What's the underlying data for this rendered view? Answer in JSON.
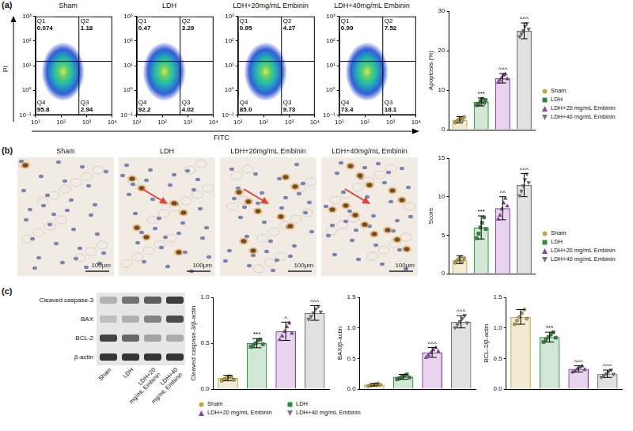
{
  "panel_labels": [
    "(a)",
    "(b)",
    "(c)"
  ],
  "flow": {
    "x_label": "FITC",
    "y_label": "PI",
    "log": true,
    "xlim": [
      10,
      10000
    ],
    "xticks": [
      {
        "value": 10,
        "label": "10¹"
      },
      {
        "value": 100,
        "label": "10²"
      },
      {
        "value": 1000,
        "label": "10³"
      },
      {
        "value": 10000,
        "label": "10⁴"
      }
    ],
    "ylim": [
      0.1,
      1000
    ],
    "yticks": [
      {
        "value": 0.1,
        "label": "10⁻¹"
      },
      {
        "value": 1,
        "label": "10⁰"
      },
      {
        "value": 10,
        "label": "10¹"
      },
      {
        "value": 100,
        "label": "10²"
      },
      {
        "value": 1000,
        "label": "10³"
      }
    ],
    "gates": {
      "x": 500,
      "y": 15
    },
    "plots": [
      {
        "title": "Sham",
        "quadrants": [
          {
            "name": "Q1",
            "value": 0.074
          },
          {
            "name": "Q2",
            "value": 1.18
          },
          {
            "name": "Q3",
            "value": 2.94
          },
          {
            "name": "Q4",
            "value": 95.8
          }
        ]
      },
      {
        "title": "LDH",
        "quadrants": [
          {
            "name": "Q1",
            "value": 0.47
          },
          {
            "name": "Q2",
            "value": 3.29
          },
          {
            "name": "Q3",
            "value": 4.02
          },
          {
            "name": "Q4",
            "value": 92.2
          }
        ]
      },
      {
        "title": "LDH+20mg/mL Embinin",
        "quadrants": [
          {
            "name": "Q1",
            "value": 0.95
          },
          {
            "name": "Q2",
            "value": 4.27
          },
          {
            "name": "Q3",
            "value": 9.73
          },
          {
            "name": "Q4",
            "value": 85.0,
            "label": "85.0"
          }
        ]
      },
      {
        "title": "LDH+40mg/mL Embinin",
        "quadrants": [
          {
            "name": "Q1",
            "value": 0.99
          },
          {
            "name": "Q2",
            "value": 7.52
          },
          {
            "name": "Q3",
            "value": 18.1
          },
          {
            "name": "Q4",
            "value": 73.4
          }
        ]
      }
    ]
  },
  "ihc": {
    "titles": [
      "Sham",
      "LDH",
      "LDH+20mg/mL Embinin",
      "LDH+40mg/mL Embinin"
    ],
    "scale_bar": "100μm"
  },
  "blot": {
    "rows": [
      "Cleaved caspase-3",
      "BAX",
      "BCL-2",
      "β-actin"
    ],
    "lanes": [
      "Sham",
      "LDH",
      "LDH+20 mg/mL Embinin",
      "LDH+40 mg/mL Embinin"
    ]
  },
  "chart_data": [
    {
      "type": "bar",
      "ylabel": "Apoptosis (%)",
      "categories": [
        "Sham",
        "LDH",
        "LDH+20 mg/mL Embinin",
        "LDH+40 mg/mL Embinin"
      ],
      "values": [
        2.5,
        7.0,
        13.0,
        25.0
      ],
      "errors": [
        0.8,
        1.0,
        1.2,
        2.0
      ],
      "points": [
        [
          1.8,
          2.2,
          2.6,
          3.0,
          2.4,
          3.2
        ],
        [
          6.2,
          6.5,
          7.2,
          7.8,
          6.8,
          7.5
        ],
        [
          12.0,
          12.6,
          13.2,
          13.8,
          14.1,
          12.9
        ],
        [
          23.5,
          24.2,
          25.0,
          26.1,
          26.8,
          25.4
        ]
      ],
      "annotations": [
        null,
        "***",
        "^^^",
        "^^^"
      ],
      "colors": [
        "#c2a83e",
        "#2e8b3a",
        "#8e3fa8",
        "#777777"
      ],
      "ylim": [
        0,
        30
      ],
      "yticks": [
        0,
        10,
        20,
        30
      ],
      "grid": false,
      "tick_labels": "y",
      "legend": "right"
    },
    {
      "type": "bar",
      "ylabel": "Score",
      "categories": [
        "Sham",
        "LDH",
        "LDH+20 mg/mL Embinin",
        "LDH+40 mg/mL Embinin"
      ],
      "values": [
        1.8,
        6.0,
        8.5,
        11.5
      ],
      "errors": [
        0.5,
        1.5,
        1.5,
        1.5
      ],
      "points": [
        [
          1.4,
          1.7,
          1.9,
          2.2,
          1.6,
          2.0
        ],
        [
          4.6,
          5.2,
          6.0,
          6.6,
          7.3,
          5.8
        ],
        [
          7.1,
          7.6,
          8.4,
          9.2,
          9.8,
          8.8
        ],
        [
          10.1,
          10.7,
          11.4,
          12.2,
          12.9,
          11.8
        ]
      ],
      "annotations": [
        null,
        "***",
        "^^",
        "^^^"
      ],
      "colors": [
        "#c2a83e",
        "#2e8b3a",
        "#8e3fa8",
        "#777777"
      ],
      "ylim": [
        0,
        15
      ],
      "yticks": [
        0,
        5,
        10,
        15
      ],
      "grid": false,
      "tick_labels": "y",
      "legend": "right"
    },
    {
      "type": "bar",
      "ylabel": "Cleaved caspase-3/β-actin",
      "categories": [
        "Sham",
        "LDH",
        "LDH+20 mg/mL Embinin",
        "LDH+40 mg/mL Embinin"
      ],
      "values": [
        0.12,
        0.5,
        0.63,
        0.83
      ],
      "errors": [
        0.03,
        0.05,
        0.1,
        0.08
      ],
      "points": [
        [
          0.09,
          0.11,
          0.12,
          0.14,
          0.13,
          0.1
        ],
        [
          0.46,
          0.48,
          0.5,
          0.53,
          0.54,
          0.49
        ],
        [
          0.54,
          0.58,
          0.63,
          0.68,
          0.72,
          0.61
        ],
        [
          0.76,
          0.79,
          0.83,
          0.87,
          0.9,
          0.84
        ]
      ],
      "annotations": [
        null,
        "***",
        "^",
        "^^^"
      ],
      "colors": [
        "#c2a83e",
        "#2e8b3a",
        "#8e3fa8",
        "#777777"
      ],
      "ylim": [
        0,
        1
      ],
      "yticks": [
        {
          "value": 0,
          "label": "0.0"
        },
        0.5,
        {
          "value": 1,
          "label": "1.0"
        }
      ],
      "grid": false,
      "tick_labels": "y",
      "legend": "bottom"
    },
    {
      "type": "bar",
      "ylabel": "BAX/β-actin",
      "categories": [
        "Sham",
        "LDH",
        "LDH+20 mg/mL Embinin",
        "LDH+40 mg/mL Embinin"
      ],
      "values": [
        0.07,
        0.2,
        0.6,
        1.1
      ],
      "errors": [
        0.02,
        0.04,
        0.08,
        0.1
      ],
      "points": [
        [
          0.05,
          0.06,
          0.07,
          0.08,
          0.09,
          0.07
        ],
        [
          0.16,
          0.18,
          0.2,
          0.22,
          0.24,
          0.19
        ],
        [
          0.52,
          0.56,
          0.6,
          0.64,
          0.68,
          0.62
        ],
        [
          1.0,
          1.05,
          1.1,
          1.15,
          1.2,
          1.08
        ]
      ],
      "annotations": [
        null,
        null,
        "^^^",
        "^^^"
      ],
      "colors": [
        "#c2a83e",
        "#2e8b3a",
        "#8e3fa8",
        "#777777"
      ],
      "ylim": [
        0,
        1.5
      ],
      "yticks": [
        {
          "value": 0,
          "label": "0.0"
        },
        0.5,
        {
          "value": 1,
          "label": "1.0"
        },
        1.5
      ],
      "grid": false,
      "tick_labels": "y"
    },
    {
      "type": "bar",
      "ylabel": "BCL-2/β-actin",
      "categories": [
        "Sham",
        "LDH",
        "LDH+20 mg/mL Embinin",
        "LDH+40 mg/mL Embinin"
      ],
      "values": [
        1.18,
        0.85,
        0.33,
        0.25
      ],
      "errors": [
        0.12,
        0.08,
        0.05,
        0.06
      ],
      "points": [
        [
          1.06,
          1.12,
          1.18,
          1.24,
          1.3,
          1.15
        ],
        [
          0.77,
          0.81,
          0.85,
          0.89,
          0.93,
          0.84
        ],
        [
          0.28,
          0.3,
          0.33,
          0.36,
          0.38,
          0.32
        ],
        [
          0.19,
          0.22,
          0.25,
          0.28,
          0.31,
          0.24
        ]
      ],
      "annotations": [
        null,
        "***",
        "^^^",
        "^^^"
      ],
      "colors": [
        "#c2a83e",
        "#2e8b3a",
        "#8e3fa8",
        "#777777"
      ],
      "ylim": [
        0,
        1.5
      ],
      "yticks": [
        {
          "value": 0,
          "label": "0.0"
        },
        0.5,
        {
          "value": 1,
          "label": "1.0"
        },
        1.5
      ],
      "grid": false,
      "tick_labels": "y"
    }
  ]
}
